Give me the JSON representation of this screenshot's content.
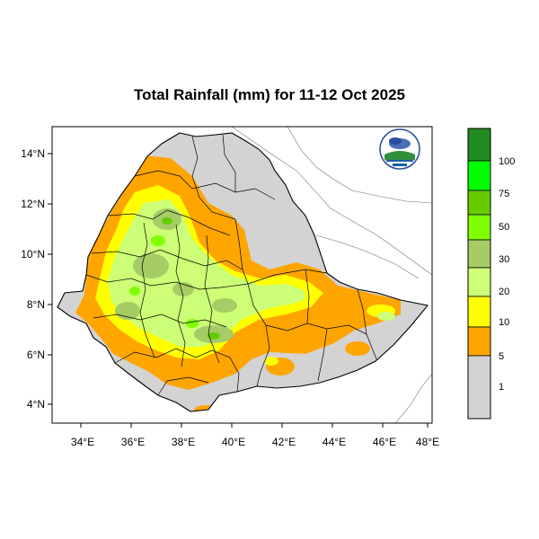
{
  "title": "Total Rainfall (mm) for 11-12 Oct 2025",
  "map": {
    "lon_ticks": [
      "34°E",
      "36°E",
      "38°E",
      "40°E",
      "42°E",
      "44°E",
      "46°E",
      "48°E"
    ],
    "lat_ticks": [
      "14°N",
      "12°N",
      "10°N",
      "8°N",
      "6°N",
      "4°N"
    ],
    "lon_range": [
      32.8,
      48.2
    ],
    "lat_range": [
      3.2,
      15.0
    ],
    "colors": {
      "ocean_bg": "#ffffff",
      "land_outside": "#ffffff",
      "no_rain": "#d3d3d3",
      "boundary": "#000000"
    }
  },
  "legend": {
    "levels": [
      {
        "label": "1",
        "color": "#d3d3d3"
      },
      {
        "label": "5",
        "color": "#ffa500"
      },
      {
        "label": "10",
        "color": "#ffff00"
      },
      {
        "label": "20",
        "color": "#ccff77"
      },
      {
        "label": "30",
        "color": "#a6cc66"
      },
      {
        "label": "50",
        "color": "#7fff00"
      },
      {
        "label": "75",
        "color": "#66cc00"
      },
      {
        "label": "100",
        "color": "#00ff00"
      },
      {
        "label": "",
        "color": "#228b22"
      }
    ]
  },
  "logo": {
    "icon": "meteorology-agency-logo"
  }
}
